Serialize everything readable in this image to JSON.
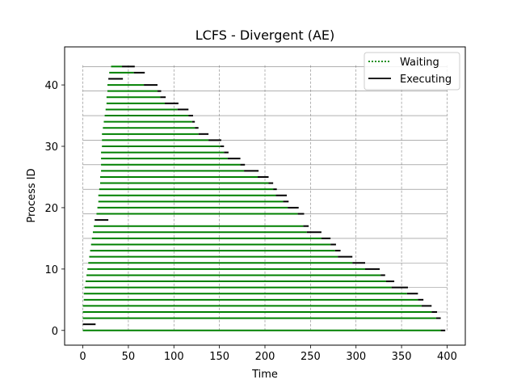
{
  "chart_data": {
    "type": "gantt",
    "title": "LCFS - Divergent (AE)",
    "xlabel": "Time",
    "ylabel": "Process ID",
    "xlim": [
      -20,
      420
    ],
    "ylim": [
      -2.4,
      46.2
    ],
    "xticks": [
      "0",
      "50",
      "100",
      "150",
      "200",
      "250",
      "300",
      "350",
      "400"
    ],
    "yticks": [
      "0",
      "10",
      "20",
      "30",
      "40"
    ],
    "grid": true,
    "legend_position": "top-right",
    "legend": {
      "waiting_label": "Waiting",
      "executing_label": "Executing"
    },
    "colors": {
      "waiting": "#008000",
      "executing": "#000000",
      "grid": "#808080"
    },
    "tasks": [
      {
        "id": 0,
        "wait_start": 0,
        "exec_start": 393,
        "exec_end": 398
      },
      {
        "id": 1,
        "wait_start": 0,
        "exec_start": 0,
        "exec_end": 14
      },
      {
        "id": 2,
        "wait_start": 0,
        "exec_start": 388,
        "exec_end": 393
      },
      {
        "id": 3,
        "wait_start": 0,
        "exec_start": 383,
        "exec_end": 389
      },
      {
        "id": 4,
        "wait_start": 0,
        "exec_start": 372,
        "exec_end": 383
      },
      {
        "id": 5,
        "wait_start": 1,
        "exec_start": 368,
        "exec_end": 374
      },
      {
        "id": 6,
        "wait_start": 1,
        "exec_start": 356,
        "exec_end": 368
      },
      {
        "id": 7,
        "wait_start": 2,
        "exec_start": 339,
        "exec_end": 357
      },
      {
        "id": 8,
        "wait_start": 3,
        "exec_start": 333,
        "exec_end": 342
      },
      {
        "id": 9,
        "wait_start": 4,
        "exec_start": 327,
        "exec_end": 332
      },
      {
        "id": 10,
        "wait_start": 5,
        "exec_start": 310,
        "exec_end": 326
      },
      {
        "id": 11,
        "wait_start": 6,
        "exec_start": 296,
        "exec_end": 310
      },
      {
        "id": 12,
        "wait_start": 7,
        "exec_start": 280,
        "exec_end": 296
      },
      {
        "id": 13,
        "wait_start": 8,
        "exec_start": 277,
        "exec_end": 283
      },
      {
        "id": 14,
        "wait_start": 9,
        "exec_start": 272,
        "exec_end": 278
      },
      {
        "id": 15,
        "wait_start": 10,
        "exec_start": 262,
        "exec_end": 272
      },
      {
        "id": 16,
        "wait_start": 11,
        "exec_start": 246,
        "exec_end": 262
      },
      {
        "id": 17,
        "wait_start": 12,
        "exec_start": 242,
        "exec_end": 248
      },
      {
        "id": 18,
        "wait_start": 13,
        "exec_start": 13,
        "exec_end": 28
      },
      {
        "id": 19,
        "wait_start": 15,
        "exec_start": 236,
        "exec_end": 243
      },
      {
        "id": 20,
        "wait_start": 16,
        "exec_start": 225,
        "exec_end": 237
      },
      {
        "id": 21,
        "wait_start": 17,
        "exec_start": 220,
        "exec_end": 226
      },
      {
        "id": 22,
        "wait_start": 17,
        "exec_start": 212,
        "exec_end": 224
      },
      {
        "id": 23,
        "wait_start": 18,
        "exec_start": 209,
        "exec_end": 213
      },
      {
        "id": 24,
        "wait_start": 19,
        "exec_start": 204,
        "exec_end": 209
      },
      {
        "id": 25,
        "wait_start": 19,
        "exec_start": 192,
        "exec_end": 204
      },
      {
        "id": 26,
        "wait_start": 20,
        "exec_start": 177,
        "exec_end": 193
      },
      {
        "id": 27,
        "wait_start": 20,
        "exec_start": 173,
        "exec_end": 178
      },
      {
        "id": 28,
        "wait_start": 20,
        "exec_start": 159,
        "exec_end": 173
      },
      {
        "id": 29,
        "wait_start": 20,
        "exec_start": 155,
        "exec_end": 160
      },
      {
        "id": 30,
        "wait_start": 21,
        "exec_start": 151,
        "exec_end": 155
      },
      {
        "id": 31,
        "wait_start": 21,
        "exec_start": 138,
        "exec_end": 152
      },
      {
        "id": 32,
        "wait_start": 21,
        "exec_start": 127,
        "exec_end": 138
      },
      {
        "id": 33,
        "wait_start": 22,
        "exec_start": 123,
        "exec_end": 127
      },
      {
        "id": 34,
        "wait_start": 23,
        "exec_start": 120,
        "exec_end": 123
      },
      {
        "id": 35,
        "wait_start": 24,
        "exec_start": 116,
        "exec_end": 121
      },
      {
        "id": 36,
        "wait_start": 25,
        "exec_start": 104,
        "exec_end": 116
      },
      {
        "id": 37,
        "wait_start": 26,
        "exec_start": 90,
        "exec_end": 105
      },
      {
        "id": 38,
        "wait_start": 26,
        "exec_start": 85,
        "exec_end": 91
      },
      {
        "id": 39,
        "wait_start": 27,
        "exec_start": 82,
        "exec_end": 86
      },
      {
        "id": 40,
        "wait_start": 27,
        "exec_start": 67,
        "exec_end": 82
      },
      {
        "id": 41,
        "wait_start": 28,
        "exec_start": 28,
        "exec_end": 44
      },
      {
        "id": 42,
        "wait_start": 29,
        "exec_start": 56,
        "exec_end": 68
      },
      {
        "id": 43,
        "wait_start": 31,
        "exec_start": 43,
        "exec_end": 57
      }
    ]
  }
}
